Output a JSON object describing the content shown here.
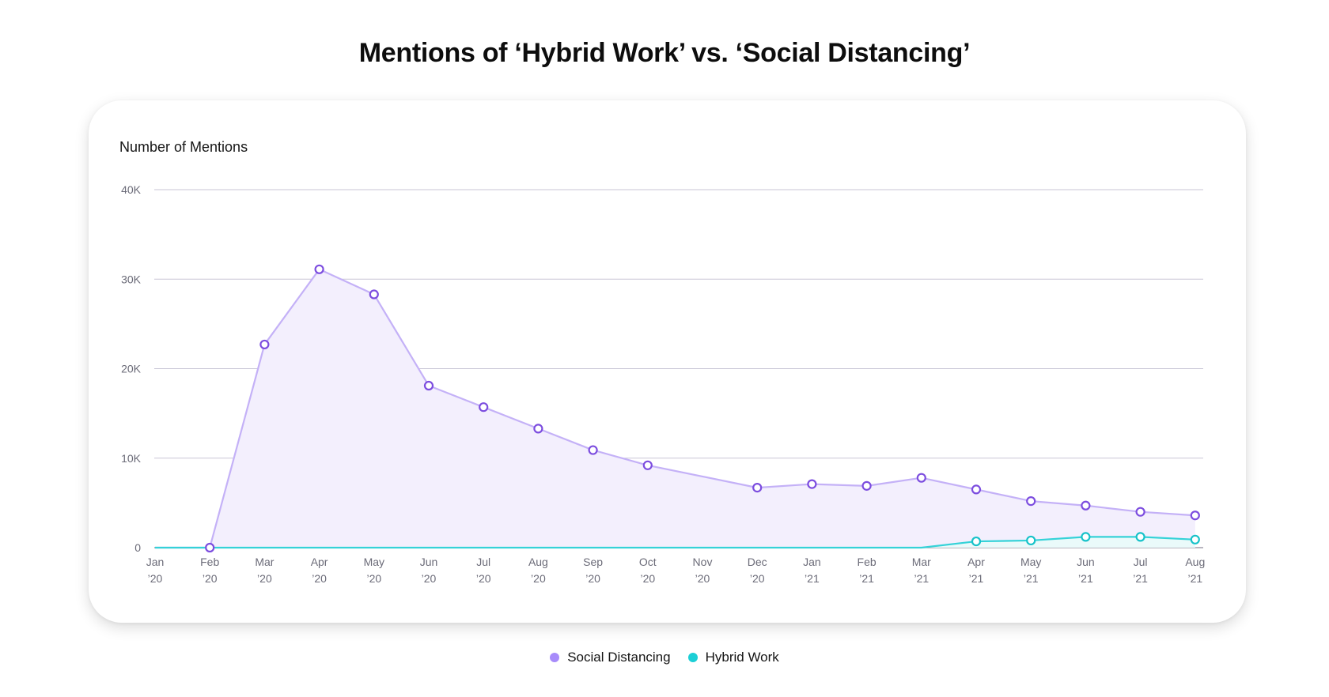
{
  "chart_data": {
    "type": "area",
    "title": "Mentions of ‘Hybrid Work’ vs. ‘Social Distancing’",
    "ylabel": "Number of Mentions",
    "xlabel": "",
    "ylim": [
      0,
      40000
    ],
    "y_ticks": [
      {
        "value": 0,
        "label": "0"
      },
      {
        "value": 10000,
        "label": "10K"
      },
      {
        "value": 20000,
        "label": "20K"
      },
      {
        "value": 30000,
        "label": "30K"
      },
      {
        "value": 40000,
        "label": "40K"
      }
    ],
    "categories": [
      {
        "month": "Jan",
        "year": "’20"
      },
      {
        "month": "Feb",
        "year": "’20"
      },
      {
        "month": "Mar",
        "year": "’20"
      },
      {
        "month": "Apr",
        "year": "’20"
      },
      {
        "month": "May",
        "year": "’20"
      },
      {
        "month": "Jun",
        "year": "’20"
      },
      {
        "month": "Jul",
        "year": "’20"
      },
      {
        "month": "Aug",
        "year": "’20"
      },
      {
        "month": "Sep",
        "year": "’20"
      },
      {
        "month": "Oct",
        "year": "’20"
      },
      {
        "month": "Nov",
        "year": "’20"
      },
      {
        "month": "Dec",
        "year": "’20"
      },
      {
        "month": "Jan",
        "year": "’21"
      },
      {
        "month": "Feb",
        "year": "’21"
      },
      {
        "month": "Mar",
        "year": "’21"
      },
      {
        "month": "Apr",
        "year": "’21"
      },
      {
        "month": "May",
        "year": "’21"
      },
      {
        "month": "Jun",
        "year": "’21"
      },
      {
        "month": "Jul",
        "year": "’21"
      },
      {
        "month": "Aug",
        "year": "’21"
      }
    ],
    "grid": true,
    "legend_position": "bottom-center",
    "series": [
      {
        "name": "Social Distancing",
        "color": "#a78bfa",
        "line_color": "#c4b1f7",
        "marker_color": "#7c4ddf",
        "fill_color": "#f3effd",
        "values": [
          0,
          0,
          22700,
          31100,
          28300,
          18100,
          15700,
          13300,
          10900,
          9200,
          null,
          6700,
          7100,
          6900,
          7800,
          6500,
          5200,
          4700,
          4000,
          3600
        ],
        "markers": [
          false,
          true,
          true,
          true,
          true,
          true,
          true,
          true,
          true,
          true,
          false,
          true,
          true,
          true,
          true,
          true,
          true,
          true,
          true,
          true
        ]
      },
      {
        "name": "Hybrid Work",
        "color": "#1ccfd6",
        "line_color": "#35d2d8",
        "marker_color": "#16c2c9",
        "fill_color": "#eafafa",
        "values": [
          0,
          0,
          0,
          0,
          0,
          0,
          0,
          0,
          0,
          0,
          0,
          0,
          0,
          0,
          0,
          700,
          800,
          1200,
          1200,
          900
        ],
        "markers": [
          false,
          false,
          false,
          false,
          false,
          false,
          false,
          false,
          false,
          false,
          false,
          false,
          false,
          false,
          false,
          true,
          true,
          true,
          true,
          true
        ]
      }
    ]
  }
}
